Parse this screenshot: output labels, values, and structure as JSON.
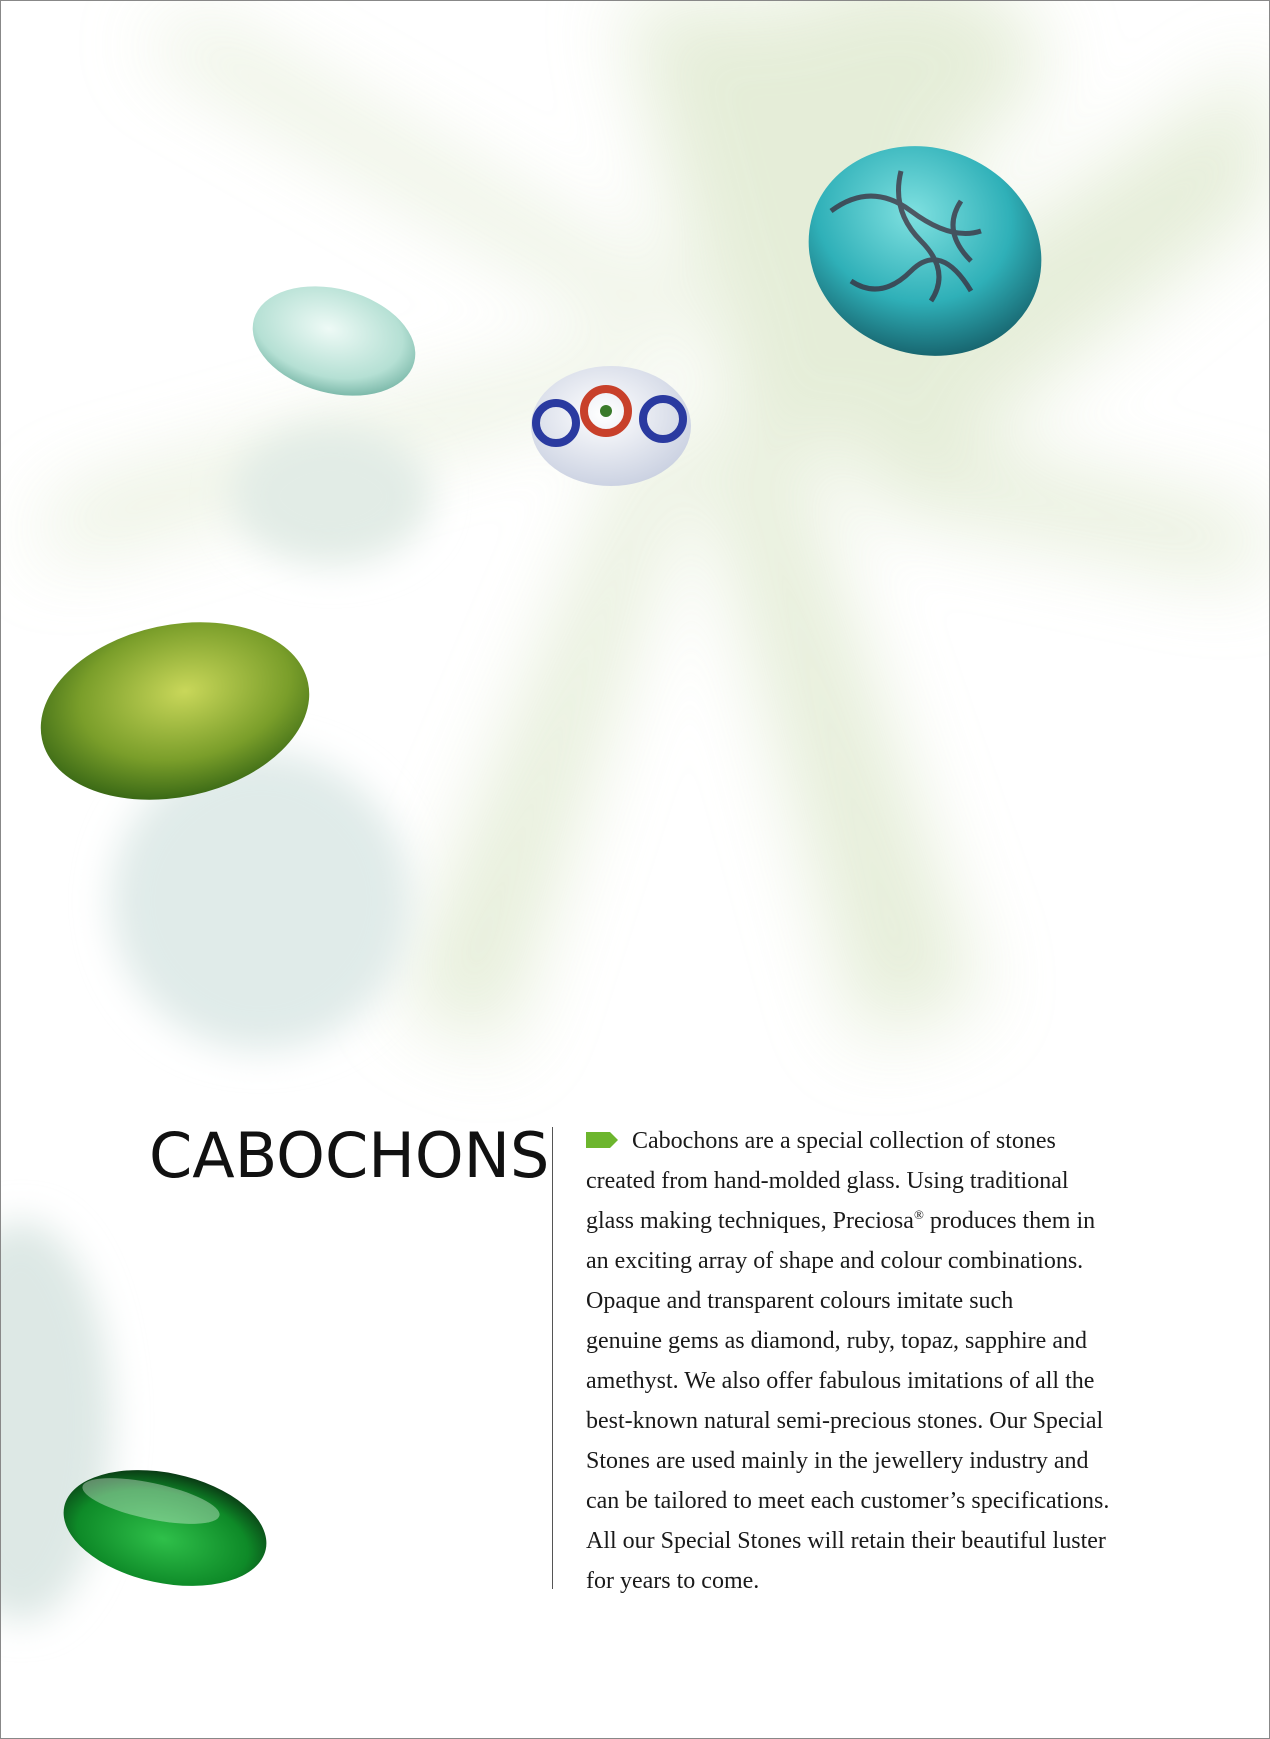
{
  "page": {
    "title": "CABOCHONS",
    "body": {
      "lines": [
        "Cabochons are a special collection of stones",
        "created from hand-molded glass. Using traditional",
        {
          "text": "glass making techniques, Preciosa",
          "sup": "®",
          "rest": " produces them in"
        },
        "an exciting array of shape and colour combinations.",
        "Opaque and transparent colours imitate such",
        "genuine gems as diamond, ruby, topaz, sapphire and",
        "amethyst. We also offer fabulous imitations of all the",
        "best-known natural semi-precious stones. Our Special",
        "Stones are used mainly in the jewellery industry and",
        "can be tailored to meet each customer’s specifications.",
        "All our Special Stones will retain their beautiful luster",
        "for years to come."
      ]
    }
  }
}
